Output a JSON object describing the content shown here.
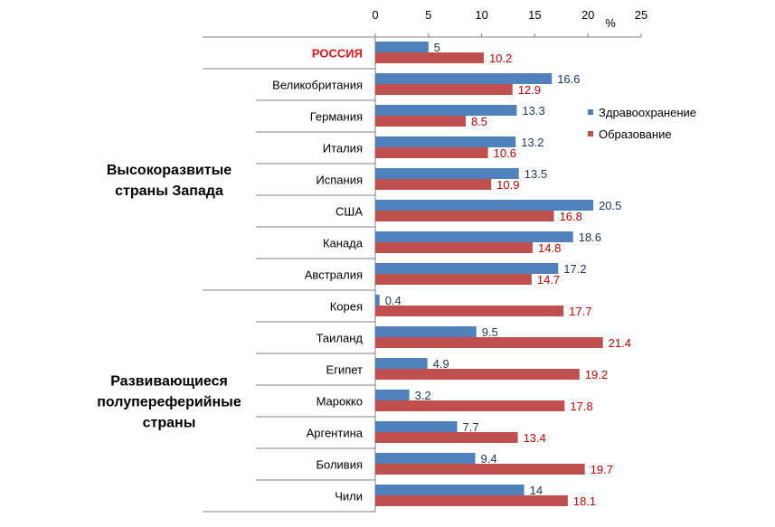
{
  "chart_data": {
    "type": "bar",
    "orientation": "horizontal",
    "unit_label": "%",
    "xlim": [
      0,
      25
    ],
    "x_ticks": [
      0,
      5,
      10,
      15,
      20,
      25
    ],
    "axis_position": "top",
    "grid": false,
    "legend_position": "right",
    "colors": {
      "health": "#4F81BD",
      "education": "#C0504D",
      "label_health": "#1F3864",
      "label_education": "#C00000",
      "highlight": "#E8121B"
    },
    "categories": [
      "РОССИЯ",
      "Великобритания",
      "Германия",
      "Италия",
      "Испания",
      "США",
      "Канада",
      "Австралия",
      "Корея",
      "Таиланд",
      "Египет",
      "Марокко",
      "Аргентина",
      "Боливия",
      "Чили"
    ],
    "highlighted_category": "РОССИЯ",
    "groups": [
      {
        "label_lines": [
          "Высокоразвитые",
          "страны Запада"
        ],
        "categories": [
          "Великобритания",
          "Германия",
          "Италия",
          "Испания",
          "США",
          "Канада",
          "Австралия"
        ]
      },
      {
        "label_lines": [
          "Развивающиеся",
          "полупереферийные",
          "страны"
        ],
        "categories": [
          "Корея",
          "Таиланд",
          "Египет",
          "Марокко",
          "Аргентина",
          "Боливия",
          "Чили"
        ]
      }
    ],
    "series": [
      {
        "name": "Здравоохранение",
        "values": [
          5,
          16.6,
          13.3,
          13.2,
          13.5,
          20.5,
          18.6,
          17.2,
          0.4,
          9.5,
          4.9,
          3.2,
          7.7,
          9.4,
          14
        ]
      },
      {
        "name": "Образование",
        "values": [
          10.2,
          12.9,
          8.5,
          10.6,
          10.9,
          16.8,
          14.8,
          14.7,
          17.7,
          21.4,
          19.2,
          17.8,
          13.4,
          19.7,
          18.1
        ]
      }
    ]
  }
}
